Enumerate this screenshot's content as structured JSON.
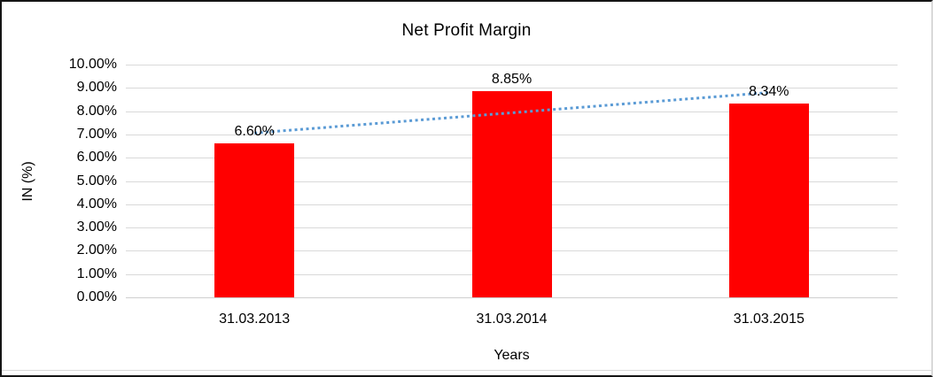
{
  "chart_data": {
    "type": "bar",
    "title": "Net Profit Margin",
    "xlabel": "Years",
    "ylabel": "IN (%)",
    "categories": [
      "31.03.2013",
      "31.03.2014",
      "31.03.2015"
    ],
    "values": [
      6.6,
      8.85,
      8.34
    ],
    "data_labels": [
      "6.60%",
      "8.85%",
      "8.34%"
    ],
    "ylim": [
      0,
      10
    ],
    "yticks": [
      "0.00%",
      "1.00%",
      "2.00%",
      "3.00%",
      "4.00%",
      "5.00%",
      "6.00%",
      "7.00%",
      "8.00%",
      "9.00%",
      "10.00%"
    ],
    "grid": true,
    "legend": "none",
    "bar_color": "#ff0000",
    "gridline_color": "#d9d9d9",
    "axisline_color": "#cfcfcf",
    "trendline": {
      "type": "linear",
      "style": "dotted",
      "color": "#5b9bd5"
    }
  }
}
